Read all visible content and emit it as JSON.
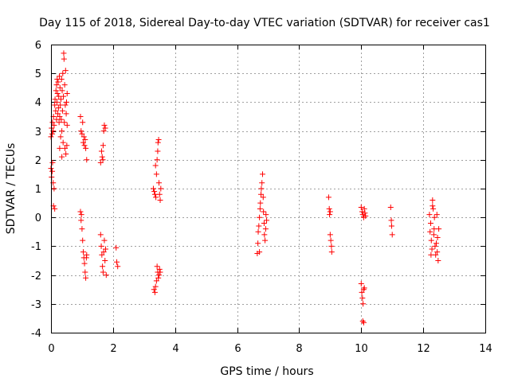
{
  "chart_data": {
    "type": "scatter",
    "title": "Day 115 of 2018, Sidereal Day-to-day VTEC variation (SDTVAR) for receiver cas1",
    "xlabel": "GPS time / hours",
    "ylabel": "SDTVAR / TECUs",
    "xlim": [
      0,
      14
    ],
    "ylim": [
      -4,
      6
    ],
    "xticks": [
      "0",
      "2",
      "4",
      "6",
      "8",
      "10",
      "12",
      "14"
    ],
    "yticks": [
      "-4",
      "-3",
      "-2",
      "-1",
      "0",
      "1",
      "2",
      "3",
      "4",
      "5",
      "6"
    ],
    "grid": true,
    "marker": "+",
    "color": "#ff0000",
    "series": [
      {
        "name": "cas1",
        "points": [
          [
            0.0,
            2.8
          ],
          [
            0.02,
            3.1
          ],
          [
            0.04,
            2.9
          ],
          [
            0.05,
            3.3
          ],
          [
            0.07,
            3.0
          ],
          [
            0.08,
            3.5
          ],
          [
            0.1,
            3.2
          ],
          [
            0.12,
            3.9
          ],
          [
            0.13,
            4.1
          ],
          [
            0.15,
            3.7
          ],
          [
            0.16,
            4.4
          ],
          [
            0.18,
            4.6
          ],
          [
            0.19,
            4.0
          ],
          [
            0.2,
            4.8
          ],
          [
            0.21,
            4.3
          ],
          [
            0.22,
            3.6
          ],
          [
            0.23,
            4.7
          ],
          [
            0.24,
            3.8
          ],
          [
            0.25,
            4.2
          ],
          [
            0.26,
            3.3
          ],
          [
            0.27,
            4.9
          ],
          [
            0.28,
            3.5
          ],
          [
            0.29,
            4.5
          ],
          [
            0.3,
            3.9
          ],
          [
            0.31,
            2.8
          ],
          [
            0.32,
            4.1
          ],
          [
            0.33,
            3.4
          ],
          [
            0.34,
            4.8
          ],
          [
            0.35,
            3.0
          ],
          [
            0.36,
            4.4
          ],
          [
            0.37,
            3.7
          ],
          [
            0.38,
            5.0
          ],
          [
            0.39,
            2.6
          ],
          [
            0.4,
            4.2
          ],
          [
            0.41,
            5.7
          ],
          [
            0.42,
            5.5
          ],
          [
            0.43,
            3.3
          ],
          [
            0.44,
            4.6
          ],
          [
            0.45,
            2.4
          ],
          [
            0.46,
            3.9
          ],
          [
            0.47,
            5.1
          ],
          [
            0.48,
            2.2
          ],
          [
            0.49,
            3.6
          ],
          [
            0.5,
            4.0
          ],
          [
            0.51,
            2.5
          ],
          [
            0.52,
            3.2
          ],
          [
            0.52,
            4.3
          ],
          [
            0.28,
            2.4
          ],
          [
            0.18,
            3.4
          ],
          [
            0.35,
            2.1
          ],
          [
            0.0,
            1.7
          ],
          [
            0.02,
            1.4
          ],
          [
            0.05,
            1.9
          ],
          [
            0.07,
            1.2
          ],
          [
            0.08,
            0.4
          ],
          [
            0.1,
            1.0
          ],
          [
            0.12,
            0.3
          ],
          [
            0.04,
            1.6
          ],
          [
            0.95,
            3.5
          ],
          [
            0.97,
            3.0
          ],
          [
            1.0,
            2.9
          ],
          [
            1.02,
            3.3
          ],
          [
            1.04,
            2.6
          ],
          [
            1.06,
            2.8
          ],
          [
            1.08,
            2.5
          ],
          [
            1.1,
            2.7
          ],
          [
            1.12,
            2.4
          ],
          [
            1.15,
            2.0
          ],
          [
            0.95,
            0.2
          ],
          [
            0.97,
            -0.1
          ],
          [
            0.98,
            0.1
          ],
          [
            1.0,
            -0.4
          ],
          [
            1.02,
            -0.8
          ],
          [
            1.04,
            -1.2
          ],
          [
            1.06,
            -1.4
          ],
          [
            1.08,
            -1.6
          ],
          [
            1.1,
            -1.9
          ],
          [
            1.12,
            -2.1
          ],
          [
            1.14,
            -1.4
          ],
          [
            1.15,
            -1.3
          ],
          [
            1.6,
            1.9
          ],
          [
            1.63,
            2.3
          ],
          [
            1.65,
            2.1
          ],
          [
            1.68,
            2.5
          ],
          [
            1.7,
            3.0
          ],
          [
            1.72,
            3.2
          ],
          [
            1.75,
            3.1
          ],
          [
            1.67,
            2.0
          ],
          [
            1.6,
            -0.6
          ],
          [
            1.62,
            -1.0
          ],
          [
            1.64,
            -1.3
          ],
          [
            1.66,
            -1.7
          ],
          [
            1.68,
            -1.9
          ],
          [
            1.7,
            -1.2
          ],
          [
            1.72,
            -0.8
          ],
          [
            1.74,
            -1.5
          ],
          [
            1.76,
            -1.1
          ],
          [
            1.78,
            -2.0
          ],
          [
            2.1,
            -1.05
          ],
          [
            2.12,
            -1.55
          ],
          [
            2.15,
            -1.7
          ],
          [
            3.3,
            1.0
          ],
          [
            3.33,
            0.9
          ],
          [
            3.35,
            0.8
          ],
          [
            3.38,
            0.7
          ],
          [
            3.4,
            1.5
          ],
          [
            3.42,
            2.0
          ],
          [
            3.44,
            2.3
          ],
          [
            3.45,
            2.6
          ],
          [
            3.47,
            2.7
          ],
          [
            3.48,
            1.2
          ],
          [
            3.5,
            0.8
          ],
          [
            3.52,
            0.6
          ],
          [
            3.54,
            1.0
          ],
          [
            3.37,
            1.8
          ],
          [
            3.32,
            -2.5
          ],
          [
            3.35,
            -2.6
          ],
          [
            3.37,
            -2.4
          ],
          [
            3.4,
            -2.2
          ],
          [
            3.42,
            -1.7
          ],
          [
            3.44,
            -1.9
          ],
          [
            3.46,
            -2.1
          ],
          [
            3.48,
            -2.0
          ],
          [
            3.5,
            -1.8
          ],
          [
            3.52,
            -1.9
          ],
          [
            6.65,
            -1.25
          ],
          [
            6.67,
            -0.9
          ],
          [
            6.68,
            -0.5
          ],
          [
            6.7,
            -0.3
          ],
          [
            6.72,
            0.0
          ],
          [
            6.74,
            0.3
          ],
          [
            6.75,
            0.5
          ],
          [
            6.77,
            0.8
          ],
          [
            6.78,
            1.0
          ],
          [
            6.8,
            1.2
          ],
          [
            6.82,
            1.5
          ],
          [
            6.84,
            0.7
          ],
          [
            6.85,
            0.2
          ],
          [
            6.87,
            -0.2
          ],
          [
            6.88,
            -0.6
          ],
          [
            6.9,
            -0.8
          ],
          [
            6.92,
            -0.4
          ],
          [
            6.93,
            0.1
          ],
          [
            6.95,
            -0.1
          ],
          [
            6.72,
            -1.2
          ],
          [
            8.95,
            0.7
          ],
          [
            8.97,
            0.3
          ],
          [
            8.98,
            0.1
          ],
          [
            9.0,
            -0.6
          ],
          [
            9.02,
            -0.8
          ],
          [
            9.04,
            -1.0
          ],
          [
            9.05,
            -1.2
          ],
          [
            9.0,
            0.2
          ],
          [
            10.0,
            0.35
          ],
          [
            10.03,
            0.2
          ],
          [
            10.05,
            0.1
          ],
          [
            10.08,
            0.0
          ],
          [
            10.1,
            0.3
          ],
          [
            10.12,
            0.15
          ],
          [
            10.14,
            0.05
          ],
          [
            10.0,
            -2.3
          ],
          [
            10.02,
            -2.6
          ],
          [
            10.04,
            -2.8
          ],
          [
            10.06,
            -3.0
          ],
          [
            10.08,
            -2.5
          ],
          [
            10.1,
            -2.45
          ],
          [
            10.05,
            -3.6
          ],
          [
            10.08,
            -3.65
          ],
          [
            10.95,
            0.35
          ],
          [
            10.97,
            -0.1
          ],
          [
            10.98,
            -0.3
          ],
          [
            11.0,
            -0.6
          ],
          [
            12.2,
            0.1
          ],
          [
            12.22,
            -0.5
          ],
          [
            12.24,
            -0.2
          ],
          [
            12.26,
            -0.8
          ],
          [
            12.28,
            -1.1
          ],
          [
            12.3,
            0.6
          ],
          [
            12.32,
            0.3
          ],
          [
            12.34,
            -0.6
          ],
          [
            12.36,
            0.0
          ],
          [
            12.38,
            -1.0
          ],
          [
            12.4,
            -1.3
          ],
          [
            12.42,
            -0.9
          ],
          [
            12.44,
            0.1
          ],
          [
            12.46,
            -0.7
          ],
          [
            12.48,
            -1.5
          ],
          [
            12.5,
            -0.4
          ],
          [
            12.3,
            0.4
          ],
          [
            12.25,
            -1.3
          ],
          [
            12.35,
            -0.4
          ],
          [
            12.45,
            -1.2
          ]
        ]
      }
    ]
  }
}
